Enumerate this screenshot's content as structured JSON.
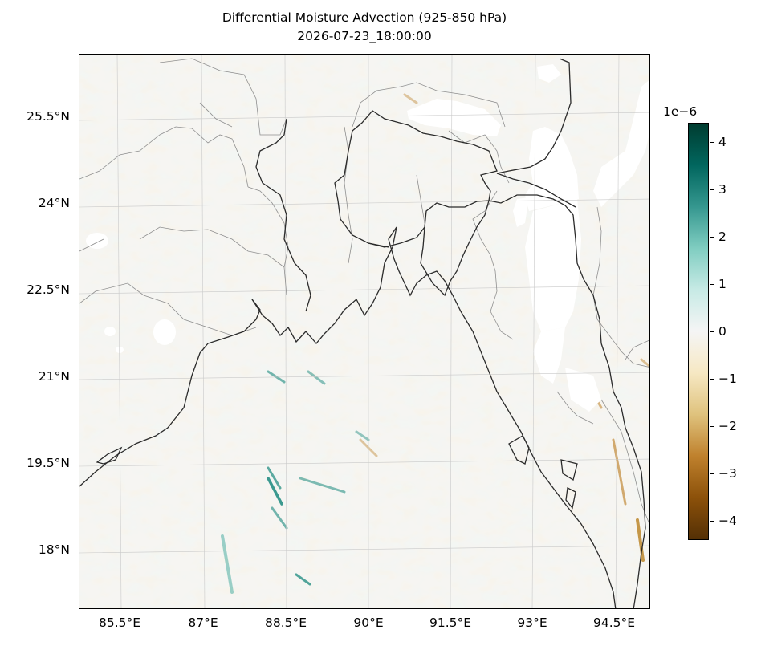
{
  "title": {
    "line1": "Differential Moisture Advection (925-850 hPa)",
    "line2": "2026-07-23_18:00:00"
  },
  "map": {
    "lon_range": [
      84.85,
      95.25
    ],
    "lat_range": [
      16.95,
      26.5
    ],
    "lat_ticks": [
      "25.5°N",
      "24°N",
      "22.5°N",
      "21°N",
      "19.5°N",
      "18°N"
    ],
    "lon_ticks": [
      "85.5°E",
      "87°E",
      "88.5°E",
      "90°E",
      "91.5°E",
      "93°E",
      "94.5°E"
    ],
    "gridlines": true,
    "coastline_color": "#2b2b2b",
    "border_color": "#8f8f8f",
    "missing_data_color": "#ffffff"
  },
  "colorbar": {
    "cmap": "BrBG",
    "multiplier": "1e−6",
    "range": [
      -4.4,
      4.4
    ],
    "ticks": [
      "4",
      "3",
      "2",
      "1",
      "0",
      "−1",
      "−2",
      "−3",
      "−4"
    ],
    "tick_values": [
      4,
      3,
      2,
      1,
      0,
      -1,
      -2,
      -3,
      -4
    ],
    "colors": [
      "#543005",
      "#8c510a",
      "#bf812d",
      "#dfc27d",
      "#f6e8c3",
      "#f5f5f5",
      "#c7eae5",
      "#80cdc1",
      "#35978f",
      "#01665e",
      "#003c30"
    ]
  }
}
